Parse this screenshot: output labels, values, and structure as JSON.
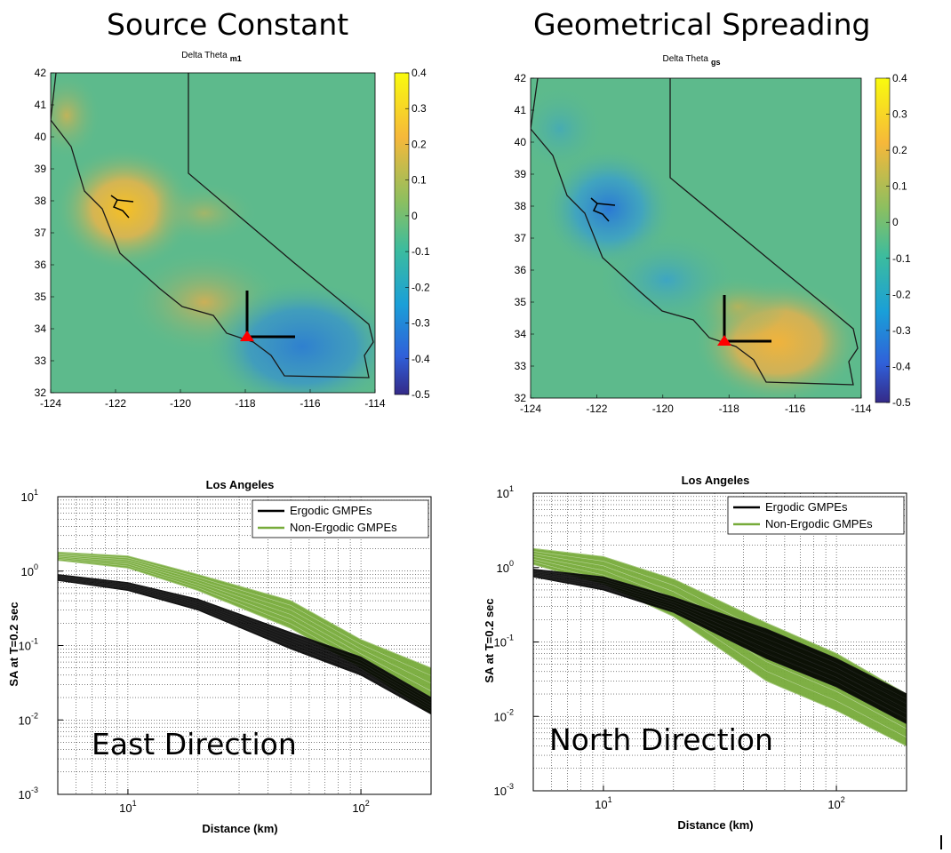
{
  "titles": {
    "left": "Source Constant",
    "right": "Geometrical Spreading"
  },
  "maps": [
    {
      "plot_title": "Delta Theta",
      "subscript": "m1",
      "xticks": [
        "-124",
        "-122",
        "-120",
        "-118",
        "-116",
        "-114"
      ],
      "yticks": [
        "42",
        "41",
        "40",
        "39",
        "38",
        "37",
        "36",
        "35",
        "34",
        "33",
        "32"
      ],
      "cbticks": [
        "0.4",
        "0.3",
        "0.2",
        "0.1",
        "0",
        "-0.1",
        "-0.2",
        "-0.3",
        "-0.4",
        "-0.5"
      ]
    },
    {
      "plot_title": "Delta Theta",
      "subscript": "gs",
      "xticks": [
        "-124",
        "-122",
        "-120",
        "-118",
        "-116",
        "-114"
      ],
      "yticks": [
        "42",
        "41",
        "40",
        "39",
        "38",
        "37",
        "36",
        "35",
        "34",
        "33",
        "32"
      ],
      "cbticks": [
        "0.4",
        "0.3",
        "0.2",
        "0.1",
        "0",
        "-0.1",
        "-0.2",
        "-0.3",
        "-0.4",
        "-0.5"
      ]
    }
  ],
  "plots": [
    {
      "title": "Los Angeles",
      "xlabel": "Distance (km)",
      "ylabel": "SA at T=0.2 sec",
      "legend": [
        "Ergodic GMPEs",
        "Non-Ergodic GMPEs"
      ],
      "direction": "East Direction",
      "xticks": [
        {
          "b": "10",
          "e": "1"
        },
        {
          "b": "10",
          "e": "2"
        }
      ],
      "yticks": [
        {
          "b": "10",
          "e": "1"
        },
        {
          "b": "10",
          "e": "0"
        },
        {
          "b": "10",
          "e": "-1"
        },
        {
          "b": "10",
          "e": "-2"
        },
        {
          "b": "10",
          "e": "-3"
        }
      ]
    },
    {
      "title": "Los Angeles",
      "xlabel": "Distance (km)",
      "ylabel": "SA at T=0.2 sec",
      "legend": [
        "Ergodic GMPEs",
        "Non-Ergodic GMPEs"
      ],
      "direction": "North Direction",
      "xticks": [
        {
          "b": "10",
          "e": "1"
        },
        {
          "b": "10",
          "e": "2"
        }
      ],
      "yticks": [
        {
          "b": "10",
          "e": "1"
        },
        {
          "b": "10",
          "e": "0"
        },
        {
          "b": "10",
          "e": "-1"
        },
        {
          "b": "10",
          "e": "-2"
        },
        {
          "b": "10",
          "e": "-3"
        }
      ]
    }
  ],
  "colors": {
    "ergodic": "#000000",
    "non_ergodic": "#77ab3a",
    "epicenter": "#ff0000",
    "map_neutral": "#5dba8c"
  },
  "chart_data": [
    {
      "type": "heatmap",
      "title": "Delta Theta m1",
      "xlim": [
        -124,
        -114
      ],
      "ylim": [
        32,
        42
      ],
      "colorbar_range": [
        -0.5,
        0.4
      ],
      "grid": false,
      "hotspots": [
        {
          "lon": -122,
          "lat": 37.8,
          "value": 0.3
        },
        {
          "lon": -119,
          "lat": 35,
          "value": 0.15
        },
        {
          "lon": -116.5,
          "lat": 34,
          "value": -0.25
        }
      ]
    },
    {
      "type": "heatmap",
      "title": "Delta Theta gs",
      "xlim": [
        -124,
        -114
      ],
      "ylim": [
        32,
        42
      ],
      "colorbar_range": [
        -0.5,
        0.4
      ],
      "grid": false,
      "hotspots": [
        {
          "lon": -122,
          "lat": 38,
          "value": -0.2
        },
        {
          "lon": -120.5,
          "lat": 35.5,
          "value": -0.1
        },
        {
          "lon": -117,
          "lat": 34,
          "value": 0.2
        }
      ]
    },
    {
      "type": "line",
      "title": "Los Angeles",
      "xlabel": "Distance (km)",
      "ylabel": "SA at T=0.2 sec",
      "xscale": "log",
      "yscale": "log",
      "xlim": [
        5,
        200
      ],
      "ylim": [
        0.001,
        10
      ],
      "grid": true,
      "legend": "top-right",
      "series": [
        {
          "name": "Ergodic GMPEs",
          "x": [
            5,
            10,
            20,
            50,
            100,
            200
          ],
          "y_low": [
            0.75,
            0.55,
            0.3,
            0.09,
            0.04,
            0.012
          ],
          "y_high": [
            0.9,
            0.7,
            0.42,
            0.15,
            0.07,
            0.02
          ]
        },
        {
          "name": "Non-Ergodic GMPEs",
          "x": [
            5,
            10,
            20,
            50,
            100,
            200
          ],
          "y_low": [
            1.4,
            1.1,
            0.55,
            0.17,
            0.05,
            0.012
          ],
          "y_high": [
            1.8,
            1.6,
            0.9,
            0.4,
            0.12,
            0.05
          ]
        }
      ]
    },
    {
      "type": "line",
      "title": "Los Angeles",
      "xlabel": "Distance (km)",
      "ylabel": "SA at T=0.2 sec",
      "xscale": "log",
      "yscale": "log",
      "xlim": [
        5,
        200
      ],
      "ylim": [
        0.001,
        10
      ],
      "grid": true,
      "legend": "top-right",
      "series": [
        {
          "name": "Ergodic GMPEs",
          "x": [
            5,
            10,
            20,
            50,
            100,
            200
          ],
          "y_low": [
            0.75,
            0.5,
            0.25,
            0.06,
            0.025,
            0.008
          ],
          "y_high": [
            0.95,
            0.75,
            0.4,
            0.15,
            0.06,
            0.02
          ]
        },
        {
          "name": "Non-Ergodic GMPEs",
          "x": [
            5,
            10,
            20,
            50,
            100,
            200
          ],
          "y_low": [
            1.1,
            0.6,
            0.22,
            0.03,
            0.012,
            0.004
          ],
          "y_high": [
            1.8,
            1.4,
            0.7,
            0.18,
            0.07,
            0.02
          ]
        }
      ]
    }
  ]
}
